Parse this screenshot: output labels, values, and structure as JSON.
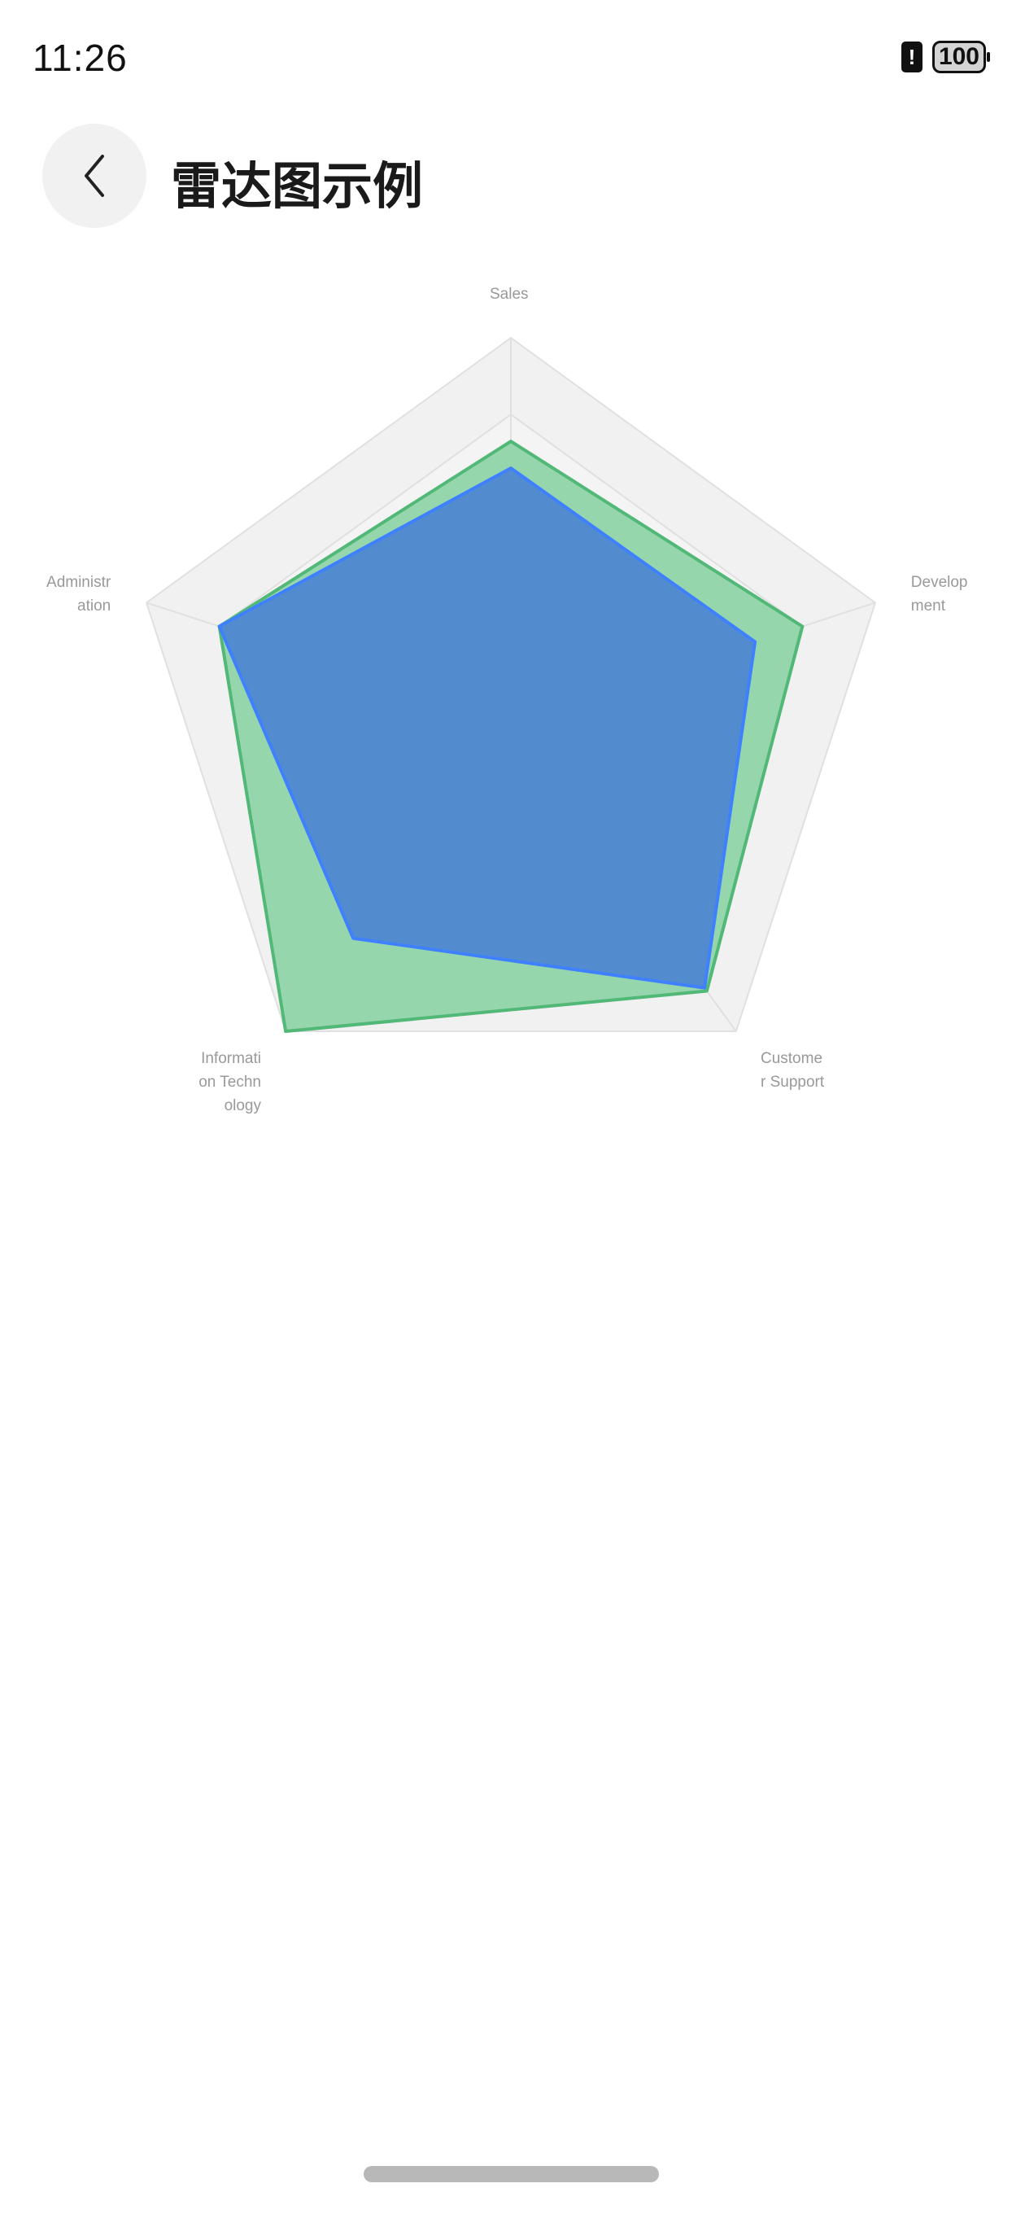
{
  "status_bar": {
    "time": "11:26",
    "battery": "100",
    "sim_icon": "sim-alert-icon"
  },
  "header": {
    "title": "雷达图示例",
    "back_icon": "chevron-left-icon"
  },
  "chart_data": {
    "type": "radar",
    "indicators": [
      {
        "name": "Sales",
        "max": 100
      },
      {
        "name": "Administration",
        "max": 100
      },
      {
        "name": "Information Technology",
        "max": 100
      },
      {
        "name": "Customer Support",
        "max": 100
      },
      {
        "name": "Development",
        "max": 100
      }
    ],
    "split_number": 5,
    "series": [
      {
        "values": [
          73,
          80,
          100,
          87,
          80
        ],
        "color": "#52b878",
        "fill": "#96d6ad"
      },
      {
        "values": [
          66,
          80,
          70,
          86,
          67
        ],
        "color": "#3f80ff",
        "fill": "#5089cf"
      }
    ],
    "grid_color": "#e0e0e0",
    "legend": "none"
  }
}
